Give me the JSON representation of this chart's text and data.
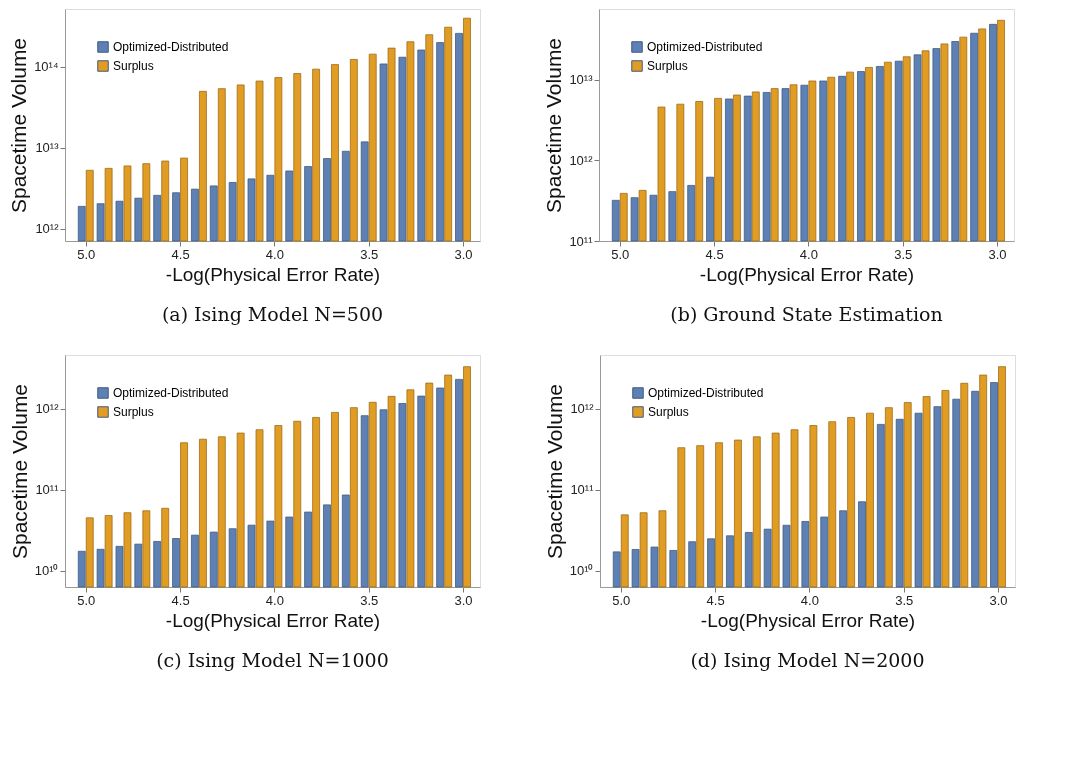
{
  "chart_data": [
    {
      "type": "bar",
      "title": "(a) Ising Model N=500",
      "xlabel": "-Log(Physical Error Rate)",
      "ylabel": "Spacetime Volume",
      "log": "y",
      "legend": "top left",
      "grid": false,
      "x": [
        5.0,
        4.9,
        4.8,
        4.7,
        4.6,
        4.5,
        4.4,
        4.3,
        4.2,
        4.1,
        4.0,
        3.9,
        3.8,
        3.7,
        3.6,
        3.5,
        3.4,
        3.3,
        3.2,
        3.1,
        3.0
      ],
      "xlim": [
        5.11,
        2.91
      ],
      "xticks": [
        {
          "value": 5,
          "label": "5.0"
        },
        {
          "value": 4.5,
          "label": "4.5"
        },
        {
          "value": 4,
          "label": "4.0"
        },
        {
          "value": 3.5,
          "label": "3.5"
        },
        {
          "value": 3,
          "label": "3.0"
        }
      ],
      "ylim": [
        710000000000.0,
        520000000000000.0
      ],
      "yticks": [
        {
          "value": 1000000000000.0,
          "label": "10¹²"
        },
        {
          "value": 10000000000000.0,
          "label": "10¹³"
        },
        {
          "value": 100000000000000.0,
          "label": "10¹⁴"
        }
      ],
      "series": [
        {
          "name": "Optimized-Distributed",
          "color": "#5e81b5",
          "values": [
            1900000000000.0,
            2050000000000.0,
            2200000000000.0,
            2400000000000.0,
            2600000000000.0,
            2800000000000.0,
            3100000000000.0,
            3400000000000.0,
            3750000000000.0,
            4150000000000.0,
            4600000000000.0,
            5200000000000.0,
            5900000000000.0,
            7400000000000.0,
            9100000000000.0,
            11900000000000.0,
            109000000000000.0,
            132000000000000.0,
            162000000000000.0,
            200000000000000.0,
            260000000000000.0
          ]
        },
        {
          "name": "Surplus",
          "color": "#e19c24",
          "values": [
            5300000000000.0,
            5600000000000.0,
            6000000000000.0,
            6400000000000.0,
            6900000000000.0,
            7500000000000.0,
            50000000000000.0,
            54000000000000.0,
            60000000000000.0,
            67000000000000.0,
            74000000000000.0,
            83000000000000.0,
            94000000000000.0,
            107000000000000.0,
            124000000000000.0,
            144000000000000.0,
            171000000000000.0,
            205000000000000.0,
            250000000000000.0,
            310000000000000.0,
            400000000000000.0
          ]
        }
      ]
    },
    {
      "type": "bar",
      "title": "(b) Ground State Estimation",
      "xlabel": "-Log(Physical Error Rate)",
      "ylabel": "Spacetime Volume",
      "log": "y",
      "legend": "top left",
      "grid": false,
      "x": [
        5.0,
        4.9,
        4.8,
        4.7,
        4.6,
        4.5,
        4.4,
        4.3,
        4.2,
        4.1,
        4.0,
        3.9,
        3.8,
        3.7,
        3.6,
        3.5,
        3.4,
        3.3,
        3.2,
        3.1,
        3.0
      ],
      "xlim": [
        5.11,
        2.91
      ],
      "xticks": [
        {
          "value": 5,
          "label": "5.0"
        },
        {
          "value": 4.5,
          "label": "4.5"
        },
        {
          "value": 4,
          "label": "4.0"
        },
        {
          "value": 3.5,
          "label": "3.5"
        },
        {
          "value": 3,
          "label": "3.0"
        }
      ],
      "ylim": [
        100000000000.0,
        76000000000000.0
      ],
      "yticks": [
        {
          "value": 100000000000.0,
          "label": "10¹¹"
        },
        {
          "value": 1000000000000.0,
          "label": "10¹²"
        },
        {
          "value": 10000000000000.0,
          "label": "10¹³"
        }
      ],
      "series": [
        {
          "name": "Optimized-Distributed",
          "color": "#5e81b5",
          "values": [
            320000000000.0,
            345000000000.0,
            370000000000.0,
            410000000000.0,
            490000000000.0,
            620000000000.0,
            5800000000000.0,
            6300000000000.0,
            7000000000000.0,
            7800000000000.0,
            8600000000000.0,
            9700000000000.0,
            11100000000000.0,
            12700000000000.0,
            14700000000000.0,
            17100000000000.0,
            20500000000000.0,
            24500000000000.0,
            30000000000000.0,
            38000000000000.0,
            49000000000000.0
          ]
        },
        {
          "name": "Surplus",
          "color": "#e19c24",
          "values": [
            390000000000.0,
            425000000000.0,
            4600000000000.0,
            5000000000000.0,
            5400000000000.0,
            5900000000000.0,
            6500000000000.0,
            7100000000000.0,
            7800000000000.0,
            8700000000000.0,
            9700000000000.0,
            10800000000000.0,
            12500000000000.0,
            14300000000000.0,
            16600000000000.0,
            19400000000000.0,
            23000000000000.0,
            28000000000000.0,
            34000000000000.0,
            43000000000000.0,
            55000000000000.0
          ]
        }
      ]
    },
    {
      "type": "bar",
      "title": "(c) Ising Model N=1000",
      "xlabel": "-Log(Physical Error Rate)",
      "ylabel": "Spacetime Volume",
      "log": "y",
      "legend": "top left",
      "grid": false,
      "x": [
        5.0,
        4.9,
        4.8,
        4.7,
        4.6,
        4.5,
        4.4,
        4.3,
        4.2,
        4.1,
        4.0,
        3.9,
        3.8,
        3.7,
        3.6,
        3.5,
        3.4,
        3.3,
        3.2,
        3.1,
        3.0
      ],
      "xlim": [
        5.11,
        2.91
      ],
      "xticks": [
        {
          "value": 5,
          "label": "5.0"
        },
        {
          "value": 4.5,
          "label": "4.5"
        },
        {
          "value": 4,
          "label": "4.0"
        },
        {
          "value": 3.5,
          "label": "3.5"
        },
        {
          "value": 3,
          "label": "3.0"
        }
      ],
      "ylim": [
        6300000000.0,
        4600000000000.0
      ],
      "yticks": [
        {
          "value": 10000000000.0,
          "label": "10¹⁰"
        },
        {
          "value": 100000000000.0,
          "label": "10¹¹"
        },
        {
          "value": 1000000000000.0,
          "label": "10¹²"
        }
      ],
      "series": [
        {
          "name": "Optimized-Distributed",
          "color": "#5e81b5",
          "values": [
            17400000000.0,
            18400000000.0,
            20000000000.0,
            21300000000.0,
            23000000000.0,
            25000000000.0,
            27500000000.0,
            30000000000.0,
            33000000000.0,
            36500000000.0,
            41000000000.0,
            46000000000.0,
            53000000000.0,
            65000000000.0,
            86000000000.0,
            820000000000.0,
            970000000000.0,
            1160000000000.0,
            1430000000000.0,
            1800000000000.0,
            2300000000000.0
          ]
        },
        {
          "name": "Surplus",
          "color": "#e19c24",
          "values": [
            45000000000.0,
            48000000000.0,
            52000000000.0,
            55000000000.0,
            59000000000.0,
            380000000000.0,
            420000000000.0,
            450000000000.0,
            500000000000.0,
            550000000000.0,
            620000000000.0,
            700000000000.0,
            780000000000.0,
            900000000000.0,
            1030000000000.0,
            1200000000000.0,
            1420000000000.0,
            1710000000000.0,
            2070000000000.0,
            2600000000000.0,
            3300000000000.0
          ]
        }
      ]
    },
    {
      "type": "bar",
      "title": "(d) Ising Model N=2000",
      "xlabel": "-Log(Physical Error Rate)",
      "ylabel": "Spacetime Volume",
      "log": "y",
      "legend": "top left",
      "grid": false,
      "x": [
        5.0,
        4.9,
        4.8,
        4.7,
        4.6,
        4.5,
        4.4,
        4.3,
        4.2,
        4.1,
        4.0,
        3.9,
        3.8,
        3.7,
        3.6,
        3.5,
        3.4,
        3.3,
        3.2,
        3.1,
        3.0
      ],
      "xlim": [
        5.11,
        2.91
      ],
      "xticks": [
        {
          "value": 5,
          "label": "5.0"
        },
        {
          "value": 4.5,
          "label": "4.5"
        },
        {
          "value": 4,
          "label": "4.0"
        },
        {
          "value": 3.5,
          "label": "3.5"
        },
        {
          "value": 3,
          "label": "3.0"
        }
      ],
      "ylim": [
        6300000000.0,
        4600000000000.0
      ],
      "yticks": [
        {
          "value": 10000000000.0,
          "label": "10¹⁰"
        },
        {
          "value": 100000000000.0,
          "label": "10¹¹"
        },
        {
          "value": 1000000000000.0,
          "label": "10¹²"
        }
      ],
      "series": [
        {
          "name": "Optimized-Distributed",
          "color": "#5e81b5",
          "values": [
            17100000000.0,
            18300000000.0,
            19600000000.0,
            17800000000.0,
            22800000000.0,
            24800000000.0,
            27000000000.0,
            29700000000.0,
            32600000000.0,
            36400000000.0,
            40600000000.0,
            46000000000.0,
            55000000000.0,
            71000000000.0,
            640000000000.0,
            740000000000.0,
            880000000000.0,
            1060000000000.0,
            1310000000000.0,
            1640000000000.0,
            2100000000000.0
          ]
        },
        {
          "name": "Surplus",
          "color": "#e19c24",
          "values": [
            49000000000.0,
            52000000000.0,
            55000000000.0,
            330000000000.0,
            350000000000.0,
            380000000000.0,
            410000000000.0,
            450000000000.0,
            500000000000.0,
            550000000000.0,
            620000000000.0,
            690000000000.0,
            780000000000.0,
            880000000000.0,
            1030000000000.0,
            1190000000000.0,
            1410000000000.0,
            1680000000000.0,
            2060000000000.0,
            2600000000000.0,
            3300000000000.0
          ]
        }
      ]
    }
  ]
}
